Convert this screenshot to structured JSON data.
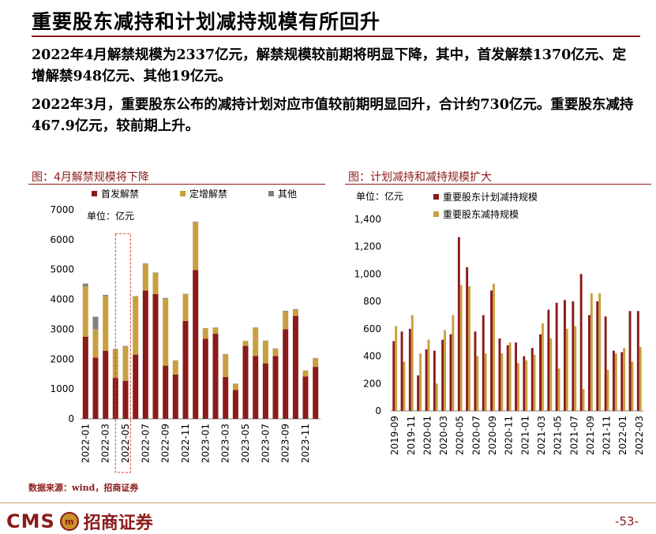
{
  "header": {
    "title": "重要股东减持和计划减持规模有所回升"
  },
  "paragraphs": {
    "p1": "2022年4月解禁规模为2337亿元，解禁规模较前期将明显下降，其中，首发解禁1370亿元、定增解禁948亿元、其他19亿元。",
    "p2": "2022年3月，重要股东公布的减持计划对应市值较前期明显回升，合计约730亿元。重要股东减持467.9亿元，较前期上升。"
  },
  "colors": {
    "dark_red": "#8b1a1a",
    "gold": "#c9a040",
    "grey": "#808080"
  },
  "chart_data": [
    {
      "type": "bar",
      "stacked": true,
      "title": "图：4月解禁规模将下降",
      "unit_label": "单位：亿元",
      "highlight_label": "2022-05",
      "categories": [
        "2022-01",
        "2022-02",
        "2022-03",
        "2022-04",
        "2022-05",
        "2022-06",
        "2022-07",
        "2022-08",
        "2022-09",
        "2022-10",
        "2022-11",
        "2022-12",
        "2023-01",
        "2023-02",
        "2023-03",
        "2023-04",
        "2023-05",
        "2023-06",
        "2023-07",
        "2023-08",
        "2023-09",
        "2023-10",
        "2023-11",
        "2023-12"
      ],
      "x_tick_labels": [
        "2022-01",
        "2022-03",
        "2022-05",
        "2022-07",
        "2022-09",
        "2022-11",
        "2023-01",
        "2023-03",
        "2023-05",
        "2023-07",
        "2023-09",
        "2023-11"
      ],
      "series": [
        {
          "name": "首发解禁",
          "values": [
            2750,
            2050,
            2280,
            1370,
            1270,
            2150,
            4300,
            4180,
            1780,
            1480,
            3280,
            4980,
            2680,
            2850,
            1400,
            970,
            2450,
            2100,
            1860,
            2100,
            3000,
            3450,
            1420,
            1740
          ]
        },
        {
          "name": "定增解禁",
          "values": [
            1680,
            950,
            1820,
            948,
            1150,
            1950,
            900,
            700,
            2240,
            470,
            900,
            1600,
            350,
            200,
            760,
            200,
            150,
            950,
            750,
            250,
            600,
            200,
            190,
            290
          ]
        },
        {
          "name": "其他",
          "values": [
            100,
            420,
            50,
            19,
            20,
            10,
            10,
            20,
            30,
            10,
            10,
            20,
            10,
            10,
            10,
            10,
            10,
            10,
            10,
            10,
            20,
            20,
            10,
            10
          ]
        }
      ],
      "ylim": [
        0,
        7000
      ],
      "yticks": [
        "0",
        "1000",
        "2000",
        "3000",
        "4000",
        "5000",
        "6000",
        "7000"
      ]
    },
    {
      "type": "bar",
      "grouped": true,
      "title": "图：计划减持和减持规模扩大",
      "unit_label": "单位：亿元",
      "categories": [
        "2019-09",
        "2019-10",
        "2019-11",
        "2019-12",
        "2020-01",
        "2020-02",
        "2020-03",
        "2020-04",
        "2020-05",
        "2020-06",
        "2020-07",
        "2020-08",
        "2020-09",
        "2020-10",
        "2020-11",
        "2020-12",
        "2021-01",
        "2021-02",
        "2021-03",
        "2021-04",
        "2021-05",
        "2021-06",
        "2021-07",
        "2021-08",
        "2021-09",
        "2021-10",
        "2021-11",
        "2021-12",
        "2022-01",
        "2022-02",
        "2022-03"
      ],
      "x_tick_labels": [
        "2019-09",
        "2019-11",
        "2020-01",
        "2020-03",
        "2020-05",
        "2020-07",
        "2020-09",
        "2020-11",
        "2021-01",
        "2021-03",
        "2021-05",
        "2021-07",
        "2021-09",
        "2021-11",
        "2022-01",
        "2022-03"
      ],
      "series": [
        {
          "name": "重要股东计划减持规模",
          "values": [
            510,
            580,
            600,
            260,
            450,
            440,
            520,
            560,
            1270,
            1050,
            580,
            700,
            880,
            530,
            480,
            500,
            400,
            460,
            560,
            740,
            790,
            810,
            800,
            1000,
            700,
            800,
            690,
            440,
            430,
            730,
            730
          ]
        },
        {
          "name": "重要股东减持规模",
          "values": [
            620,
            360,
            700,
            420,
            520,
            200,
            590,
            700,
            920,
            910,
            400,
            420,
            930,
            420,
            500,
            350,
            370,
            410,
            640,
            530,
            310,
            600,
            620,
            160,
            860,
            860,
            300,
            420,
            460,
            360,
            468
          ]
        }
      ],
      "ylim": [
        0,
        1400
      ],
      "yticks": [
        "0",
        "200",
        "400",
        "600",
        "800",
        "1,000",
        "1,200",
        "1,400"
      ]
    }
  ],
  "footer": {
    "source": "数据来源：wind，招商证券",
    "logo_latin": "CMS",
    "logo_mark": "m",
    "logo_cn": "招商证券",
    "page_number": "-53-"
  }
}
